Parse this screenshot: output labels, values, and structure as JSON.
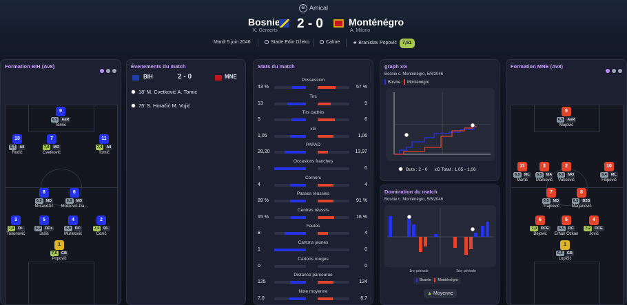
{
  "header": {
    "competition": "Amical",
    "home": {
      "name": "Bosnie",
      "manager": "K. Geraerts",
      "flag_colors": [
        "#1f3ea8",
        "#f3d21a"
      ]
    },
    "away": {
      "name": "Monténégro",
      "manager": "A. Milono",
      "flag_colors": [
        "#c4161c",
        "#d4a017"
      ]
    },
    "score": "2 - 0",
    "date": "Mardi 5 juin 2046",
    "stadium": "Stade Edin Džeko",
    "weather": "Calme",
    "motm_name": "Branislav Popović",
    "motm_rating": "7,61"
  },
  "formation_home": {
    "title": "Formation BIH (Av8)",
    "players": [
      {
        "num": "9",
        "rating": "6,5",
        "pos": "AaR",
        "name": "Tomić",
        "kit": "blue"
      },
      {
        "num": "10",
        "rating": "6,7",
        "pos": "All",
        "name": "Rodić",
        "kit": "blue"
      },
      {
        "num": "7",
        "rating": "7,0",
        "pos": "MO",
        "name": "Cvetković",
        "kit": "blue"
      },
      {
        "num": "11",
        "rating": "7,4",
        "pos": "All",
        "name": "Tomić",
        "kit": "blue"
      },
      {
        "num": "8",
        "rating": "6,9",
        "pos": "MD",
        "name": "Mutavdžić",
        "kit": "blue"
      },
      {
        "num": "6",
        "rating": "6,9",
        "pos": "MD",
        "name": "Mokrović-Da...",
        "kit": "blue"
      },
      {
        "num": "3",
        "rating": "7,0",
        "pos": "DL",
        "name": "Tosunović",
        "kit": "blue"
      },
      {
        "num": "5",
        "rating": "6,9",
        "pos": "DCs",
        "name": "Jašić",
        "kit": "blue"
      },
      {
        "num": "4",
        "rating": "6,9",
        "pos": "DC",
        "name": "Muratović",
        "kit": "blue"
      },
      {
        "num": "2",
        "rating": "7,2",
        "pos": "DL",
        "name": "Ćosić",
        "kit": "blue"
      },
      {
        "num": "1",
        "rating": "7,6",
        "pos": "GB",
        "name": "Popović",
        "kit": "gk"
      }
    ]
  },
  "events": {
    "title": "Évenements du match",
    "home_code": "BIH",
    "away_code": "MNE",
    "score": "2 - 0",
    "items": [
      {
        "text": "18' M. Cvetković A. Tomić"
      },
      {
        "text": "75' S. Horačić M. Vujić"
      }
    ]
  },
  "stats": {
    "title": "Stats du match",
    "rows": [
      {
        "label": "Possession",
        "home": "43 %",
        "away": "57 %",
        "hv": 43,
        "av": 57
      },
      {
        "label": "Tirs",
        "home": "13",
        "away": "9",
        "hv": 13,
        "av": 9
      },
      {
        "label": "Tirs cadrés",
        "home": "5",
        "away": "6",
        "hv": 5,
        "av": 6
      },
      {
        "label": "xG",
        "home": "1,05",
        "away": "1,06",
        "hv": 1.05,
        "av": 1.06
      },
      {
        "label": "PAPAD",
        "home": "28,20",
        "away": "13,97",
        "hv": 28.2,
        "av": 13.97
      },
      {
        "label": "Occasions franches",
        "home": "1",
        "away": "0",
        "hv": 1,
        "av": 0
      },
      {
        "label": "Corners",
        "home": "4",
        "away": "4",
        "hv": 4,
        "av": 4
      },
      {
        "label": "Passes réussies",
        "home": "89 %",
        "away": "91 %",
        "hv": 89,
        "av": 91
      },
      {
        "label": "Centres réussis",
        "home": "15 %",
        "away": "16 %",
        "hv": 15,
        "av": 16
      },
      {
        "label": "Fautes",
        "home": "8",
        "away": "4",
        "hv": 8,
        "av": 4
      },
      {
        "label": "Cartons jaunes",
        "home": "1",
        "away": "0",
        "hv": 1,
        "av": 0
      },
      {
        "label": "Cartons rouges",
        "home": "0",
        "away": "0",
        "hv": 0,
        "av": 0
      },
      {
        "label": "Distance parcourue",
        "home": "125",
        "away": "124",
        "hv": 125,
        "av": 124
      },
      {
        "label": "Note moyenne",
        "home": "7,0",
        "away": "6,7",
        "hv": 7.0,
        "av": 6.7
      }
    ]
  },
  "xg": {
    "title": "graph xG",
    "subtitle": "Bosnie c. Monténégro, 5/6/2046",
    "legend_home": "Bosnie",
    "legend_away": "Monténégro",
    "goals_label": "Buts : 2 - 0",
    "xg_label": "xG Total : 1,05 - 1,06",
    "home_color": "#2433e8",
    "away_color": "#e2452b"
  },
  "dom": {
    "title": "Domination du match",
    "subtitle": "Bosnie c. Monténégro, 5/6/2046",
    "first_half": "1re période",
    "second_half": "2de période",
    "legend_home": "Bosnie",
    "legend_away": "Monténégro",
    "button": "Moyenne"
  },
  "formation_away": {
    "title": "Formation MNE (Av8)",
    "players": [
      {
        "num": "9",
        "rating": "6,5",
        "pos": "AaR",
        "name": "Mujović",
        "kit": "red"
      },
      {
        "num": "11",
        "rating": "6,5",
        "pos": "ML",
        "name": "Martić",
        "kit": "red"
      },
      {
        "num": "3",
        "rating": "6,5",
        "pos": "MA",
        "name": "Marković",
        "kit": "red"
      },
      {
        "num": "2",
        "rating": "6,6",
        "pos": "MO",
        "name": "Vukčević",
        "kit": "red"
      },
      {
        "num": "10",
        "rating": "6,4",
        "pos": "ML",
        "name": "Filipović",
        "kit": "red"
      },
      {
        "num": "7",
        "rating": "6,5",
        "pos": "MD",
        "name": "Trajković",
        "kit": "red"
      },
      {
        "num": "8",
        "rating": "6,5",
        "pos": "B2B",
        "name": "Marjanović",
        "kit": "red"
      },
      {
        "num": "6",
        "rating": "7,0",
        "pos": "DCE",
        "name": "Bejović",
        "kit": "red"
      },
      {
        "num": "5",
        "rating": "6,5",
        "pos": "DC",
        "name": "Erhan Özkan",
        "kit": "red"
      },
      {
        "num": "4",
        "rating": "7,2",
        "pos": "DCE",
        "name": "Jović",
        "kit": "red"
      },
      {
        "num": "1",
        "rating": "6,5",
        "pos": "GB",
        "name": "Lopičić",
        "kit": "gk"
      }
    ]
  }
}
